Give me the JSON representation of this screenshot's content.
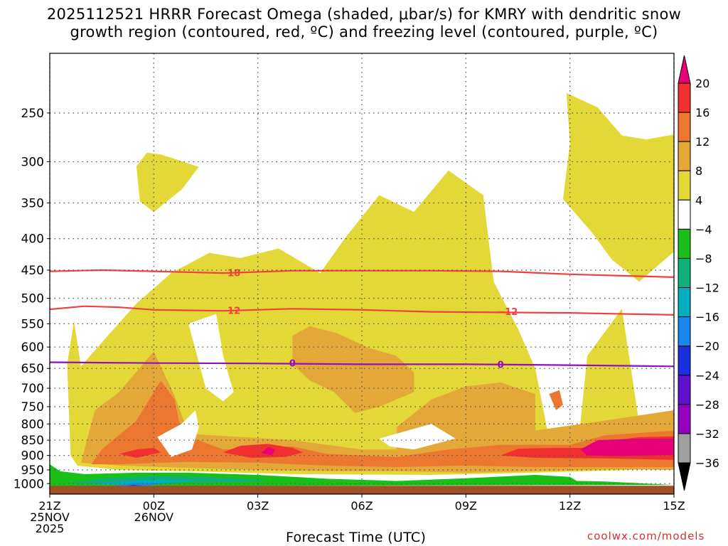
{
  "title_line1": "2025112521 HRRR Forecast Omega (shaded, μbar/s) for KMRY with dendritic snow",
  "title_line2": "growth region (contoured, red, ºC) and freezing level (contoured, purple, ºC)",
  "xlabel": "Forecast Time (UTC)",
  "credit": "coolwx.com/models",
  "chart_data": {
    "type": "heatmap",
    "x_ticks": [
      {
        "hour": 0,
        "lines": [
          "21Z",
          "25NOV",
          "2025"
        ]
      },
      {
        "hour": 3,
        "lines": [
          "00Z",
          "26NOV"
        ]
      },
      {
        "hour": 6,
        "lines": [
          "03Z"
        ]
      },
      {
        "hour": 9,
        "lines": [
          "06Z"
        ]
      },
      {
        "hour": 12,
        "lines": [
          "09Z"
        ]
      },
      {
        "hour": 15,
        "lines": [
          "12Z"
        ]
      },
      {
        "hour": 18,
        "lines": [
          "15Z"
        ]
      }
    ],
    "y_ticks": [
      250,
      300,
      350,
      400,
      450,
      500,
      550,
      600,
      650,
      700,
      750,
      800,
      850,
      900,
      950,
      1000
    ],
    "y_scale": "log-pressure",
    "y_range_hPa": [
      200,
      1040
    ],
    "x_range_hours": [
      0,
      18
    ],
    "grid": true,
    "colorbar": {
      "labels": [
        "20",
        "16",
        "12",
        "8",
        "4",
        "−4",
        "−8",
        "−12",
        "−16",
        "−20",
        "−24",
        "−28",
        "−32",
        "−36"
      ],
      "colors": [
        "#e8007a",
        "#f23030",
        "#ec7830",
        "#e4a838",
        "#e4d838",
        "#ffffff",
        "#18c018",
        "#10b07a",
        "#00b0c0",
        "#1888f0",
        "#1830e0",
        "#6010d0",
        "#9800c0",
        "#a0a0a0",
        "#000000"
      ]
    },
    "dgz_contours": [
      {
        "label": "−18",
        "color": "#f04040",
        "points": [
          [
            0,
            452
          ],
          [
            1.5,
            450
          ],
          [
            3,
            452
          ],
          [
            5,
            455
          ],
          [
            7,
            451
          ],
          [
            9,
            451
          ],
          [
            11,
            451
          ],
          [
            13,
            452
          ],
          [
            15,
            457
          ],
          [
            18,
            462
          ]
        ]
      },
      {
        "label": "−12",
        "color": "#f04040",
        "points": [
          [
            0,
            521
          ],
          [
            1,
            515
          ],
          [
            2,
            517
          ],
          [
            3,
            522
          ],
          [
            5,
            524
          ],
          [
            7,
            520
          ],
          [
            9,
            522
          ],
          [
            11,
            526
          ],
          [
            13,
            527
          ],
          [
            15,
            528
          ],
          [
            18,
            532
          ]
        ]
      }
    ],
    "freezing_level": {
      "label": "0",
      "color": "#9010c0",
      "points": [
        [
          0,
          635
        ],
        [
          3,
          637
        ],
        [
          6,
          638
        ],
        [
          9,
          640
        ],
        [
          12,
          640
        ],
        [
          15,
          642
        ],
        [
          18,
          645
        ]
      ]
    },
    "contour_labels": [
      {
        "text": "−18",
        "color": "#f04040",
        "hour": 5.2,
        "p": 454
      },
      {
        "text": "−12",
        "color": "#f04040",
        "hour": 5.2,
        "p": 523
      },
      {
        "text": "−12",
        "color": "#f04040",
        "hour": 13.2,
        "p": 525
      },
      {
        "text": "0",
        "color": "#9010c0",
        "hour": 7,
        "p": 637
      },
      {
        "text": "0",
        "color": "#9010c0",
        "hour": 13,
        "p": 640
      }
    ],
    "regions": [
      {
        "min": 4,
        "color": "#e4d838",
        "points": [
          [
            0.6,
            900
          ],
          [
            0.5,
            640
          ],
          [
            0.7,
            545
          ],
          [
            0.9,
            645
          ],
          [
            1.5,
            590
          ],
          [
            2.5,
            510
          ],
          [
            3.5,
            455
          ],
          [
            4.6,
            422
          ],
          [
            5.5,
            430
          ],
          [
            6.6,
            415
          ],
          [
            7.8,
            455
          ],
          [
            8.5,
            400
          ],
          [
            9.5,
            340
          ],
          [
            10.5,
            362
          ],
          [
            11.5,
            310
          ],
          [
            12.5,
            340
          ],
          [
            12.8,
            470
          ],
          [
            13.5,
            560
          ],
          [
            14,
            650
          ],
          [
            14.5,
            905
          ],
          [
            15.2,
            905
          ],
          [
            15.5,
            620
          ],
          [
            16.5,
            520
          ],
          [
            17,
            800
          ],
          [
            18,
            780
          ],
          [
            18,
            945
          ],
          [
            14,
            960
          ],
          [
            11,
            968
          ],
          [
            7,
            965
          ],
          [
            4,
            955
          ],
          [
            2,
            950
          ],
          [
            0.8,
            935
          ]
        ]
      },
      {
        "min": 4,
        "color": "#e4d838",
        "points": [
          [
            15.0,
            280
          ],
          [
            14.9,
            232
          ],
          [
            15.8,
            245
          ],
          [
            16.5,
            272
          ],
          [
            17.2,
            276
          ],
          [
            18,
            271
          ],
          [
            18,
            420
          ],
          [
            17,
            470
          ],
          [
            16.2,
            432
          ],
          [
            15.7,
            395
          ],
          [
            14.8,
            345
          ]
        ]
      },
      {
        "min": 4,
        "color": "#e4d838",
        "points": [
          [
            2.6,
            348
          ],
          [
            2.5,
            305
          ],
          [
            2.8,
            290
          ],
          [
            3.2,
            292
          ],
          [
            3.7,
            298
          ],
          [
            4.3,
            306
          ],
          [
            3.8,
            333
          ],
          [
            3.0,
            362
          ]
        ]
      },
      {
        "min": 8,
        "color": "#e4a838",
        "points": [
          [
            0.9,
            925
          ],
          [
            1.3,
            760
          ],
          [
            2,
            710
          ],
          [
            3.0,
            610
          ],
          [
            3.6,
            720
          ],
          [
            4,
            830
          ],
          [
            7,
            850
          ],
          [
            9,
            880
          ],
          [
            10,
            880
          ],
          [
            10,
            810
          ],
          [
            11,
            730
          ],
          [
            12,
            695
          ],
          [
            13,
            685
          ],
          [
            14,
            715
          ],
          [
            14,
            820
          ],
          [
            16,
            790
          ],
          [
            18,
            760
          ],
          [
            18,
            950
          ],
          [
            16,
            948
          ],
          [
            14,
            955
          ],
          [
            12,
            960
          ],
          [
            10,
            955
          ],
          [
            8,
            955
          ],
          [
            6,
            950
          ],
          [
            4,
            943
          ],
          [
            2,
            935
          ]
        ]
      },
      {
        "min": 8,
        "color": "#e4a838",
        "points": [
          [
            7.0,
            575
          ],
          [
            7.5,
            555
          ],
          [
            8.3,
            570
          ],
          [
            9.2,
            602
          ],
          [
            10,
            620
          ],
          [
            10.5,
            660
          ],
          [
            10.5,
            710
          ],
          [
            9.5,
            750
          ],
          [
            8.8,
            768
          ],
          [
            8.2,
            710
          ],
          [
            7.5,
            680
          ],
          [
            7,
            640
          ]
        ]
      },
      {
        "min": 12,
        "color": "#ec7830",
        "points": [
          [
            1.2,
            930
          ],
          [
            1.5,
            880
          ],
          [
            2.5,
            790
          ],
          [
            3.2,
            680
          ],
          [
            3.6,
            730
          ],
          [
            3.8,
            830
          ],
          [
            5,
            880
          ],
          [
            7,
            870
          ],
          [
            8,
            895
          ],
          [
            10,
            905
          ],
          [
            11.5,
            880
          ],
          [
            13,
            865
          ],
          [
            15,
            865
          ],
          [
            16,
            835
          ],
          [
            18,
            820
          ],
          [
            18,
            940
          ],
          [
            16,
            940
          ],
          [
            14,
            940
          ],
          [
            12,
            935
          ],
          [
            10,
            940
          ],
          [
            8,
            935
          ],
          [
            6,
            925
          ],
          [
            4,
            922
          ],
          [
            2,
            930
          ]
        ]
      },
      {
        "min": 12,
        "color": "#ec7830",
        "points": [
          [
            14.4,
            715
          ],
          [
            14.7,
            705
          ],
          [
            14.8,
            745
          ],
          [
            14.6,
            760
          ]
        ]
      },
      {
        "min": 16,
        "color": "#f23030",
        "points": [
          [
            2.0,
            895
          ],
          [
            2.5,
            880
          ],
          [
            3.0,
            875
          ],
          [
            3.2,
            890
          ],
          [
            2.5,
            908
          ]
        ]
      },
      {
        "min": 16,
        "color": "#f23030",
        "points": [
          [
            5.0,
            890
          ],
          [
            5.5,
            868
          ],
          [
            6.3,
            862
          ],
          [
            7.0,
            875
          ],
          [
            7.3,
            890
          ],
          [
            6.8,
            905
          ],
          [
            5.8,
            908
          ]
        ]
      },
      {
        "min": 16,
        "color": "#f23030",
        "points": [
          [
            13.0,
            900
          ],
          [
            13.5,
            878
          ],
          [
            14.5,
            875
          ],
          [
            15.5,
            875
          ],
          [
            16,
            855
          ],
          [
            17,
            840
          ],
          [
            18,
            838
          ],
          [
            18,
            915
          ],
          [
            16,
            910
          ],
          [
            14,
            908
          ]
        ]
      },
      {
        "min": 20,
        "color": "#e8007a",
        "points": [
          [
            6.1,
            892
          ],
          [
            6.3,
            872
          ],
          [
            6.5,
            882
          ],
          [
            6.4,
            900
          ]
        ]
      },
      {
        "min": 20,
        "color": "#e8007a",
        "points": [
          [
            15.3,
            880
          ],
          [
            15.8,
            850
          ],
          [
            17,
            845
          ],
          [
            18,
            845
          ],
          [
            18,
            898
          ],
          [
            16.5,
            902
          ],
          [
            15.5,
            900
          ]
        ]
      },
      {
        "min": -8,
        "color": "#18c018",
        "points": [
          [
            0,
            930
          ],
          [
            0.3,
            955
          ],
          [
            1,
            965
          ],
          [
            2.5,
            960
          ],
          [
            4,
            960
          ],
          [
            6,
            968
          ],
          [
            8,
            982
          ],
          [
            10,
            990
          ],
          [
            12,
            980
          ],
          [
            14,
            968
          ],
          [
            15,
            975
          ],
          [
            15.2,
            990
          ],
          [
            16,
            992
          ],
          [
            18,
            1005
          ],
          [
            0,
            1010
          ]
        ]
      },
      {
        "min": -12,
        "color": "#10b07a",
        "points": [
          [
            0.5,
            1000
          ],
          [
            1.5,
            980
          ],
          [
            3,
            972
          ],
          [
            4.5,
            975
          ],
          [
            6,
            985
          ],
          [
            6.3,
            990
          ],
          [
            5,
            995
          ],
          [
            3,
            997
          ],
          [
            1.5,
            1000
          ]
        ]
      },
      {
        "min": -16,
        "color": "#00b0c0",
        "points": [
          [
            1.2,
            1005
          ],
          [
            2.2,
            990
          ],
          [
            3.2,
            985
          ],
          [
            4.2,
            990
          ],
          [
            3.5,
            998
          ],
          [
            2,
            1003
          ]
        ]
      },
      {
        "min": -20,
        "color": "#1888f0",
        "points": [
          [
            1.8,
            1008
          ],
          [
            2.5,
            998
          ],
          [
            3.3,
            1000
          ],
          [
            2.6,
            1010
          ]
        ]
      },
      {
        "min": -24,
        "color": "#1830e0",
        "points": [
          [
            2.0,
            1012
          ],
          [
            2.4,
            1005
          ],
          [
            2.8,
            1010
          ]
        ]
      }
    ],
    "holes": [
      {
        "points": [
          [
            3.1,
            840
          ],
          [
            3.8,
            800
          ],
          [
            4.2,
            760
          ],
          [
            4.3,
            810
          ],
          [
            4.1,
            880
          ],
          [
            3.5,
            905
          ]
        ]
      },
      {
        "points": [
          [
            4.0,
            550
          ],
          [
            4.8,
            530
          ],
          [
            5.0,
            620
          ],
          [
            5.3,
            710
          ],
          [
            5.0,
            735
          ],
          [
            4.5,
            700
          ]
        ]
      },
      {
        "points": [
          [
            9.5,
            845
          ],
          [
            11.0,
            800
          ],
          [
            11.7,
            845
          ],
          [
            10.5,
            880
          ],
          [
            9.8,
            870
          ]
        ]
      }
    ],
    "surface_fill": "#a05028",
    "surface_top_hPa": 1008
  }
}
